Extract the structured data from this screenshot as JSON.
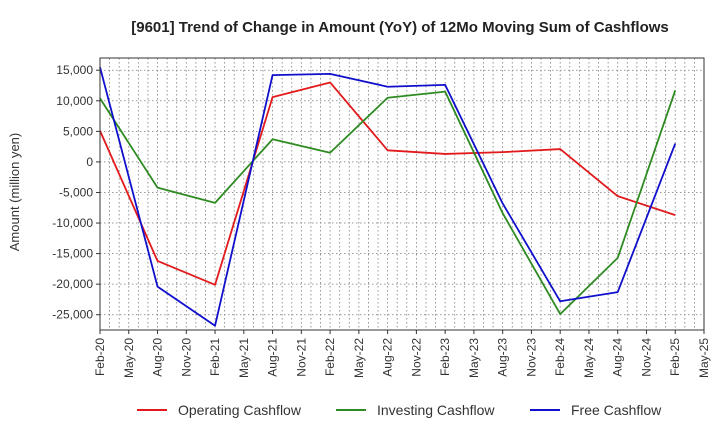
{
  "chart_data": {
    "type": "line",
    "title": "[9601]  Trend of Change in Amount (YoY) of 12Mo Moving Sum of Cashflows",
    "xlabel": "",
    "ylabel": "Amount (million yen)",
    "ylim": [
      -27500,
      17000
    ],
    "yticks": [
      15000,
      10000,
      5000,
      0,
      -5000,
      -10000,
      -15000,
      -20000,
      -25000
    ],
    "ytick_labels": [
      "15,000",
      "10,000",
      "5,000",
      "0",
      "-5,000",
      "-10,000",
      "-15,000",
      "-20,000",
      "-25,000"
    ],
    "categories": [
      "Feb-20",
      "May-20",
      "Aug-20",
      "Nov-20",
      "Feb-21",
      "May-21",
      "Aug-21",
      "Nov-21",
      "Feb-22",
      "May-22",
      "Aug-22",
      "Nov-22",
      "Feb-23",
      "May-23",
      "Aug-23",
      "Nov-23",
      "Feb-24",
      "May-24",
      "Aug-24",
      "Nov-24",
      "Feb-25",
      "May-25"
    ],
    "grid": true,
    "legend_position": "bottom",
    "series": [
      {
        "name": "Operating Cashflow",
        "color": "#e31a1c",
        "values": [
          5100,
          null,
          -16200,
          null,
          -20100,
          null,
          10600,
          null,
          13000,
          null,
          1900,
          null,
          1300,
          null,
          1600,
          null,
          2100,
          null,
          -5600,
          null,
          -8700,
          null
        ]
      },
      {
        "name": "Investing Cashflow",
        "color": "#2e8b22",
        "values": [
          10400,
          null,
          -4200,
          null,
          -6700,
          null,
          3700,
          null,
          1500,
          null,
          10500,
          null,
          11500,
          null,
          -8400,
          null,
          -24900,
          null,
          -15700,
          null,
          11700,
          null
        ]
      },
      {
        "name": "Free Cashflow",
        "color": "#1010cc",
        "values": [
          15500,
          null,
          -20400,
          null,
          -26800,
          null,
          14200,
          null,
          14400,
          null,
          12300,
          null,
          12600,
          null,
          -6800,
          null,
          -22800,
          null,
          -21300,
          null,
          3000,
          null
        ]
      }
    ]
  }
}
